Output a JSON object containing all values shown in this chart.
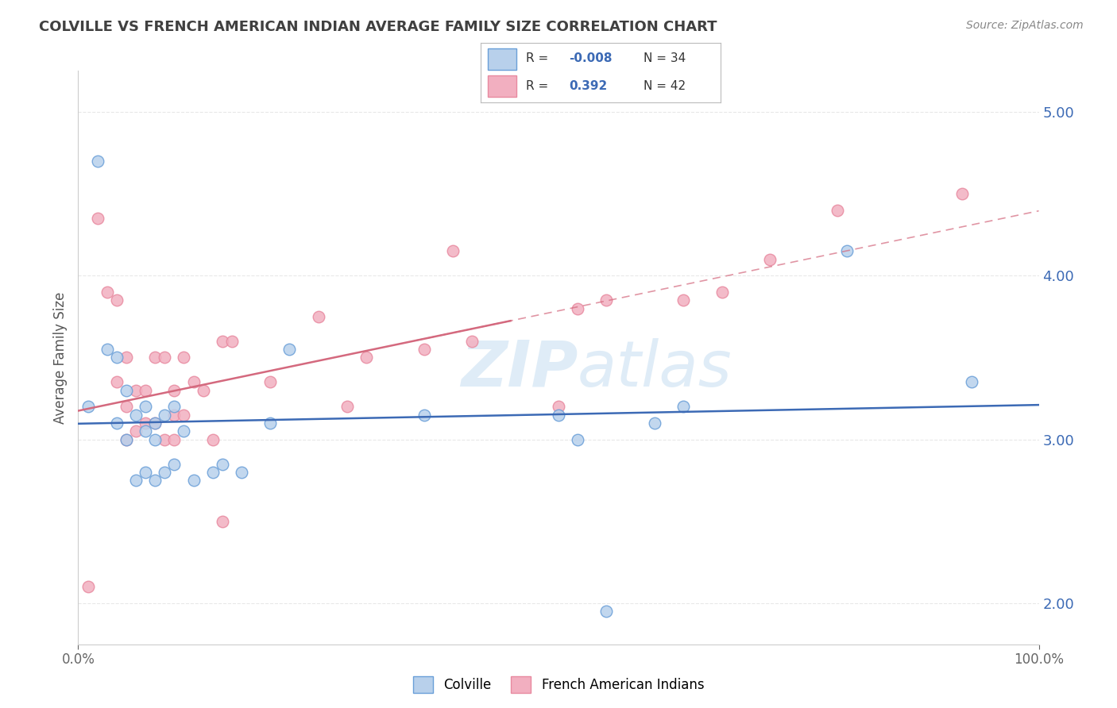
{
  "title": "COLVILLE VS FRENCH AMERICAN INDIAN AVERAGE FAMILY SIZE CORRELATION CHART",
  "source": "Source: ZipAtlas.com",
  "ylabel": "Average Family Size",
  "xlim": [
    0,
    1
  ],
  "ylim": [
    1.75,
    5.25
  ],
  "yticks": [
    2.0,
    3.0,
    4.0,
    5.0
  ],
  "xticks": [
    0.0,
    1.0
  ],
  "xticklabels": [
    "0.0%",
    "100.0%"
  ],
  "colville_color": "#b8d0eb",
  "french_color": "#f2afc0",
  "colville_edge_color": "#6a9fd8",
  "french_edge_color": "#e88aa0",
  "colville_line_color": "#3c6ab5",
  "french_line_color": "#d4697e",
  "R_colville": -0.008,
  "N_colville": 34,
  "R_french": 0.392,
  "N_french": 42,
  "colville_x": [
    0.01,
    0.02,
    0.03,
    0.04,
    0.04,
    0.05,
    0.05,
    0.06,
    0.06,
    0.07,
    0.07,
    0.07,
    0.08,
    0.08,
    0.08,
    0.09,
    0.09,
    0.1,
    0.1,
    0.11,
    0.12,
    0.14,
    0.15,
    0.17,
    0.2,
    0.22,
    0.36,
    0.5,
    0.52,
    0.55,
    0.6,
    0.63,
    0.8,
    0.93
  ],
  "colville_y": [
    3.2,
    4.7,
    3.55,
    3.5,
    3.1,
    3.3,
    3.0,
    3.15,
    2.75,
    3.2,
    3.05,
    2.8,
    3.1,
    3.0,
    2.75,
    3.15,
    2.8,
    3.2,
    2.85,
    3.05,
    2.75,
    2.8,
    2.85,
    2.8,
    3.1,
    3.55,
    3.15,
    3.15,
    3.0,
    1.95,
    3.1,
    3.2,
    4.15,
    3.35
  ],
  "french_x": [
    0.01,
    0.02,
    0.03,
    0.04,
    0.04,
    0.05,
    0.05,
    0.05,
    0.06,
    0.06,
    0.07,
    0.07,
    0.08,
    0.08,
    0.09,
    0.09,
    0.1,
    0.1,
    0.1,
    0.11,
    0.11,
    0.12,
    0.13,
    0.14,
    0.15,
    0.15,
    0.16,
    0.2,
    0.25,
    0.28,
    0.3,
    0.36,
    0.39,
    0.41,
    0.5,
    0.52,
    0.55,
    0.63,
    0.67,
    0.72,
    0.79,
    0.92
  ],
  "french_y": [
    2.1,
    4.35,
    3.9,
    3.85,
    3.35,
    3.5,
    3.2,
    3.0,
    3.3,
    3.05,
    3.3,
    3.1,
    3.5,
    3.1,
    3.5,
    3.0,
    3.3,
    3.15,
    3.0,
    3.5,
    3.15,
    3.35,
    3.3,
    3.0,
    3.6,
    2.5,
    3.6,
    3.35,
    3.75,
    3.2,
    3.5,
    3.55,
    4.15,
    3.6,
    3.2,
    3.8,
    3.85,
    3.85,
    3.9,
    4.1,
    4.4,
    4.5
  ],
  "background_color": "#ffffff",
  "grid_color": "#e8e8e8",
  "title_color": "#404040",
  "legend_text_color": "#333333",
  "legend_R_value_color": "#3c6ab5",
  "source_color": "#888888",
  "watermark_color": "#d8e8f5"
}
